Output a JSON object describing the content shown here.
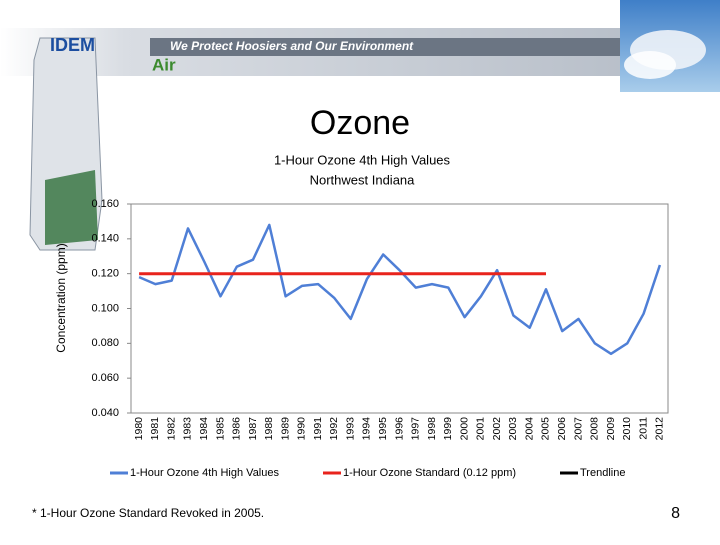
{
  "header": {
    "logo": "IDEM",
    "slogan": "We Protect Hoosiers and Our Environment",
    "section": "Air"
  },
  "slide_title": "Ozone",
  "footnote": "* 1-Hour Ozone Standard Revoked in 2005.",
  "page_number": "8",
  "chart_data": {
    "type": "line",
    "title": [
      "1-Hour Ozone 4th High Values",
      "Northwest Indiana"
    ],
    "y_label": "Concentration (ppm)",
    "categories": [
      "1980",
      "1981",
      "1982",
      "1983",
      "1984",
      "1985",
      "1986",
      "1987",
      "1988",
      "1989",
      "1990",
      "1991",
      "1992",
      "1993",
      "1994",
      "1995",
      "1996",
      "1997",
      "1998",
      "1999",
      "2000",
      "2001",
      "2002",
      "2003",
      "2004",
      "2005",
      "2006",
      "2007",
      "2008",
      "2009",
      "2010",
      "2011",
      "2012"
    ],
    "series": [
      {
        "name": "1-Hour Ozone 4th High Values",
        "color": "#4f7fd6",
        "values": [
          0.118,
          0.114,
          0.116,
          0.146,
          0.127,
          0.107,
          0.124,
          0.128,
          0.148,
          0.107,
          0.113,
          0.114,
          0.106,
          0.094,
          0.117,
          0.131,
          0.122,
          0.112,
          0.114,
          0.112,
          0.095,
          0.107,
          0.122,
          0.096,
          0.089,
          0.111,
          0.087,
          0.094,
          0.08,
          0.074,
          0.08,
          0.097,
          0.125
        ]
      },
      {
        "name": "1-Hour Ozone Standard (0.12 ppm)",
        "color": "#e8231c",
        "values": [
          0.12,
          0.12,
          0.12,
          0.12,
          0.12,
          0.12,
          0.12,
          0.12,
          0.12,
          0.12,
          0.12,
          0.12,
          0.12,
          0.12,
          0.12,
          0.12,
          0.12,
          0.12,
          0.12,
          0.12,
          0.12,
          0.12,
          0.12,
          0.12,
          0.12,
          0.12,
          null,
          null,
          null,
          null,
          null,
          null,
          null
        ]
      },
      {
        "name": "Trendline",
        "color": "#000000",
        "values": [
          null,
          null,
          null,
          null,
          null,
          null,
          null,
          null,
          null,
          null,
          null,
          null,
          null,
          null,
          null,
          null,
          null,
          null,
          null,
          null,
          null,
          null,
          null,
          null,
          null,
          null,
          null,
          null,
          null,
          null,
          null,
          null,
          null
        ]
      }
    ],
    "ylim": [
      0.04,
      0.16
    ],
    "yticks": [
      {
        "value": 0.04,
        "label": "0.040"
      },
      {
        "value": 0.06,
        "label": "0.060"
      },
      {
        "value": 0.08,
        "label": "0.080"
      },
      {
        "value": 0.1,
        "label": "0.100"
      },
      {
        "value": 0.12,
        "label": "0.120"
      },
      {
        "value": 0.14,
        "label": "0.140"
      },
      {
        "value": 0.16,
        "label": "0.160"
      }
    ],
    "legend": "bottom"
  }
}
